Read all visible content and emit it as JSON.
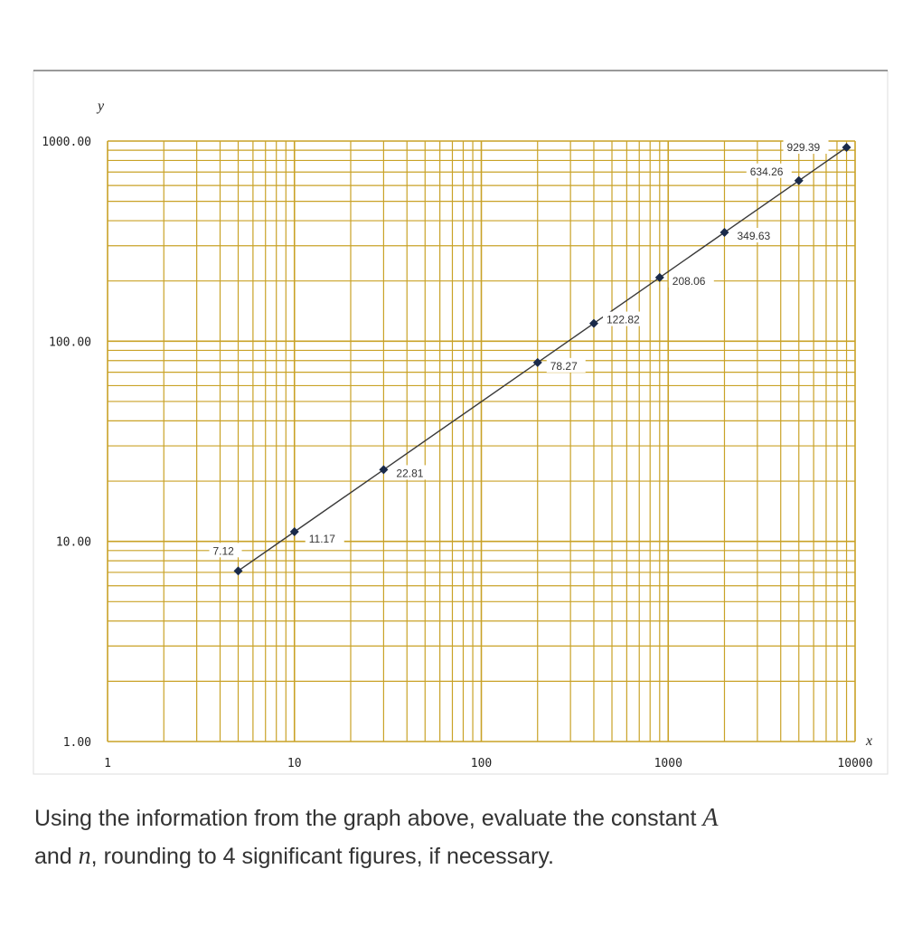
{
  "chart_data": {
    "type": "scatter",
    "x_scale": "log",
    "y_scale": "log",
    "xlabel": "x",
    "ylabel": "y",
    "xlim": [
      1,
      10000
    ],
    "ylim": [
      1,
      1000
    ],
    "x_tick_labels": [
      "1",
      "10",
      "100",
      "1000",
      "10000"
    ],
    "y_tick_labels": [
      "1.00",
      "10.00",
      "100.00",
      "1000.00"
    ],
    "grid": true,
    "series": [
      {
        "points": [
          {
            "x": 5,
            "y": 7.12,
            "label": "7.12"
          },
          {
            "x": 10,
            "y": 11.17,
            "label": "11.17"
          },
          {
            "x": 30,
            "y": 22.81,
            "label": "22.81"
          },
          {
            "x": 200,
            "y": 78.27,
            "label": "78.27"
          },
          {
            "x": 400,
            "y": 122.82,
            "label": "122.82"
          },
          {
            "x": 900,
            "y": 208.06,
            "label": "208.06"
          },
          {
            "x": 2000,
            "y": 349.63,
            "label": "349.63"
          },
          {
            "x": 5000,
            "y": 634.26,
            "label": "634.26"
          },
          {
            "x": 9000,
            "y": 929.39,
            "label": "929.39"
          }
        ]
      }
    ],
    "colors": {
      "grid": "#c9a227",
      "line": "#3a3a3a",
      "marker": "#1a2a4a"
    }
  },
  "question": {
    "part1": "Using the information from the graph above, evaluate the constant ",
    "var_a": "A",
    "part2": "and ",
    "var_n": "n",
    "part3": ", rounding to 4 significant figures, if necessary."
  }
}
